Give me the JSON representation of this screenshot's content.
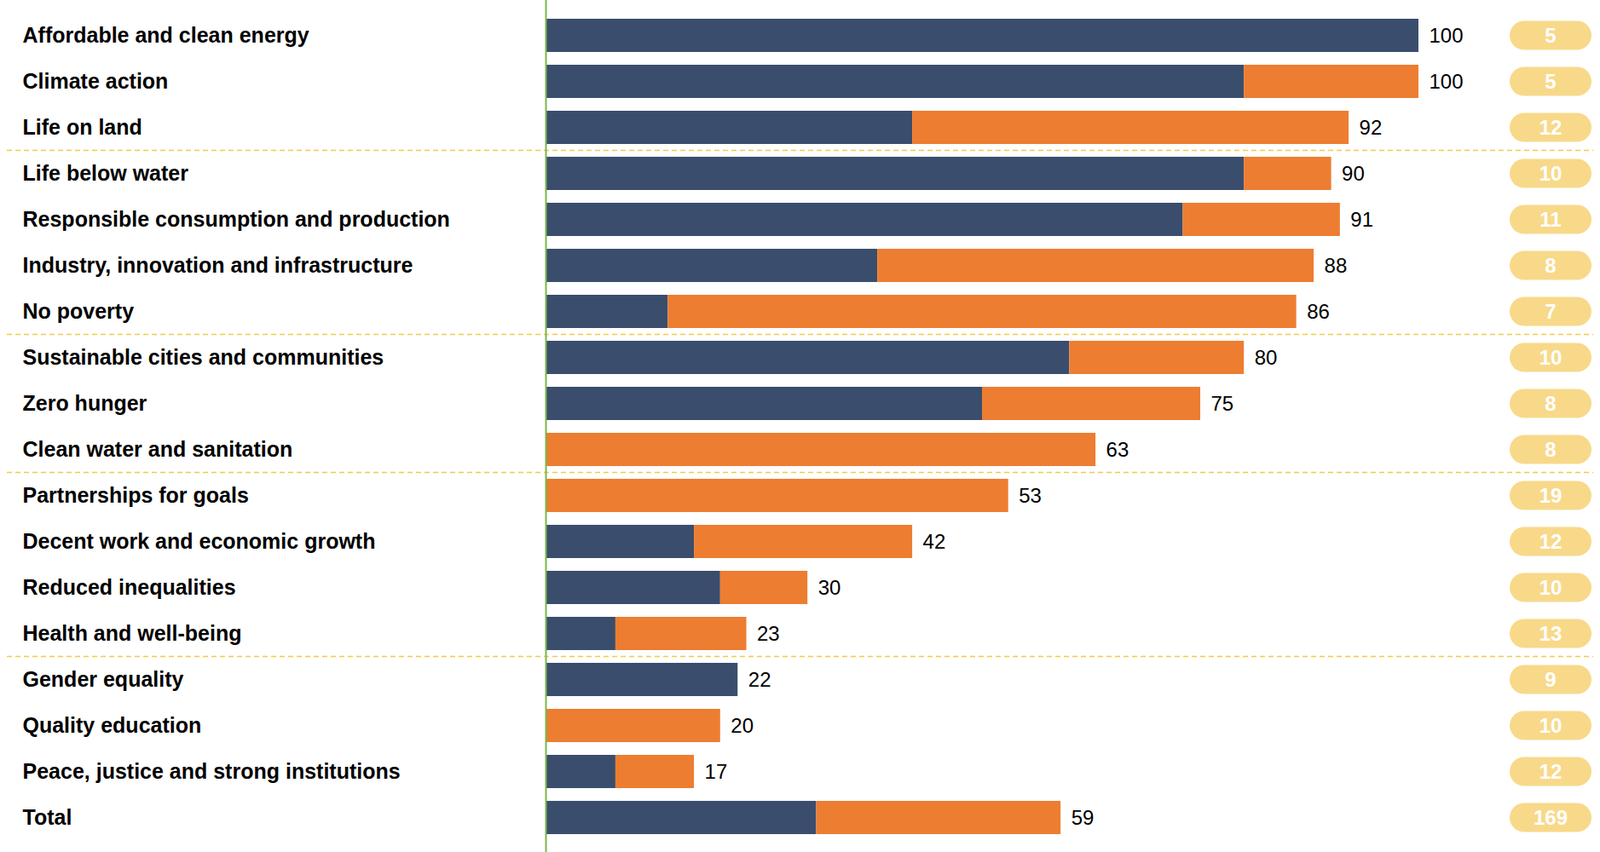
{
  "chart_data": {
    "type": "bar",
    "orientation": "horizontal",
    "stacked": true,
    "grid": false,
    "tick_labels": "y",
    "categories": [
      "Affordable and clean energy",
      "Climate action",
      "Life on land",
      "Life below water",
      "Responsible consumption and production",
      "Industry, innovation and infrastructure",
      "No poverty",
      "Sustainable cities and communities",
      "Zero hunger",
      "Clean water and sanitation",
      "Partnerships for goals",
      "Decent work and economic growth",
      "Reduced inequalities",
      "Health and well-being",
      "Gender equality",
      "Quality education",
      "Peace, justice and strong institutions",
      "Total"
    ],
    "series": [
      {
        "color": "#3a4d6d",
        "values": [
          100,
          80,
          42,
          80,
          73,
          38,
          14,
          60,
          50,
          0,
          0,
          17,
          20,
          8,
          22,
          0,
          8,
          31
        ]
      },
      {
        "color": "#ed7d31",
        "values": [
          0,
          20,
          50,
          10,
          18,
          50,
          72,
          20,
          25,
          63,
          53,
          25,
          10,
          15,
          0,
          20,
          9,
          28
        ]
      }
    ],
    "totals": [
      100,
      100,
      92,
      90,
      91,
      88,
      86,
      80,
      75,
      63,
      53,
      42,
      30,
      23,
      22,
      20,
      17,
      59
    ],
    "counts": [
      5,
      5,
      12,
      10,
      11,
      8,
      7,
      10,
      8,
      8,
      19,
      12,
      10,
      13,
      9,
      10,
      12,
      169
    ],
    "xlim": [
      0,
      100
    ]
  }
}
